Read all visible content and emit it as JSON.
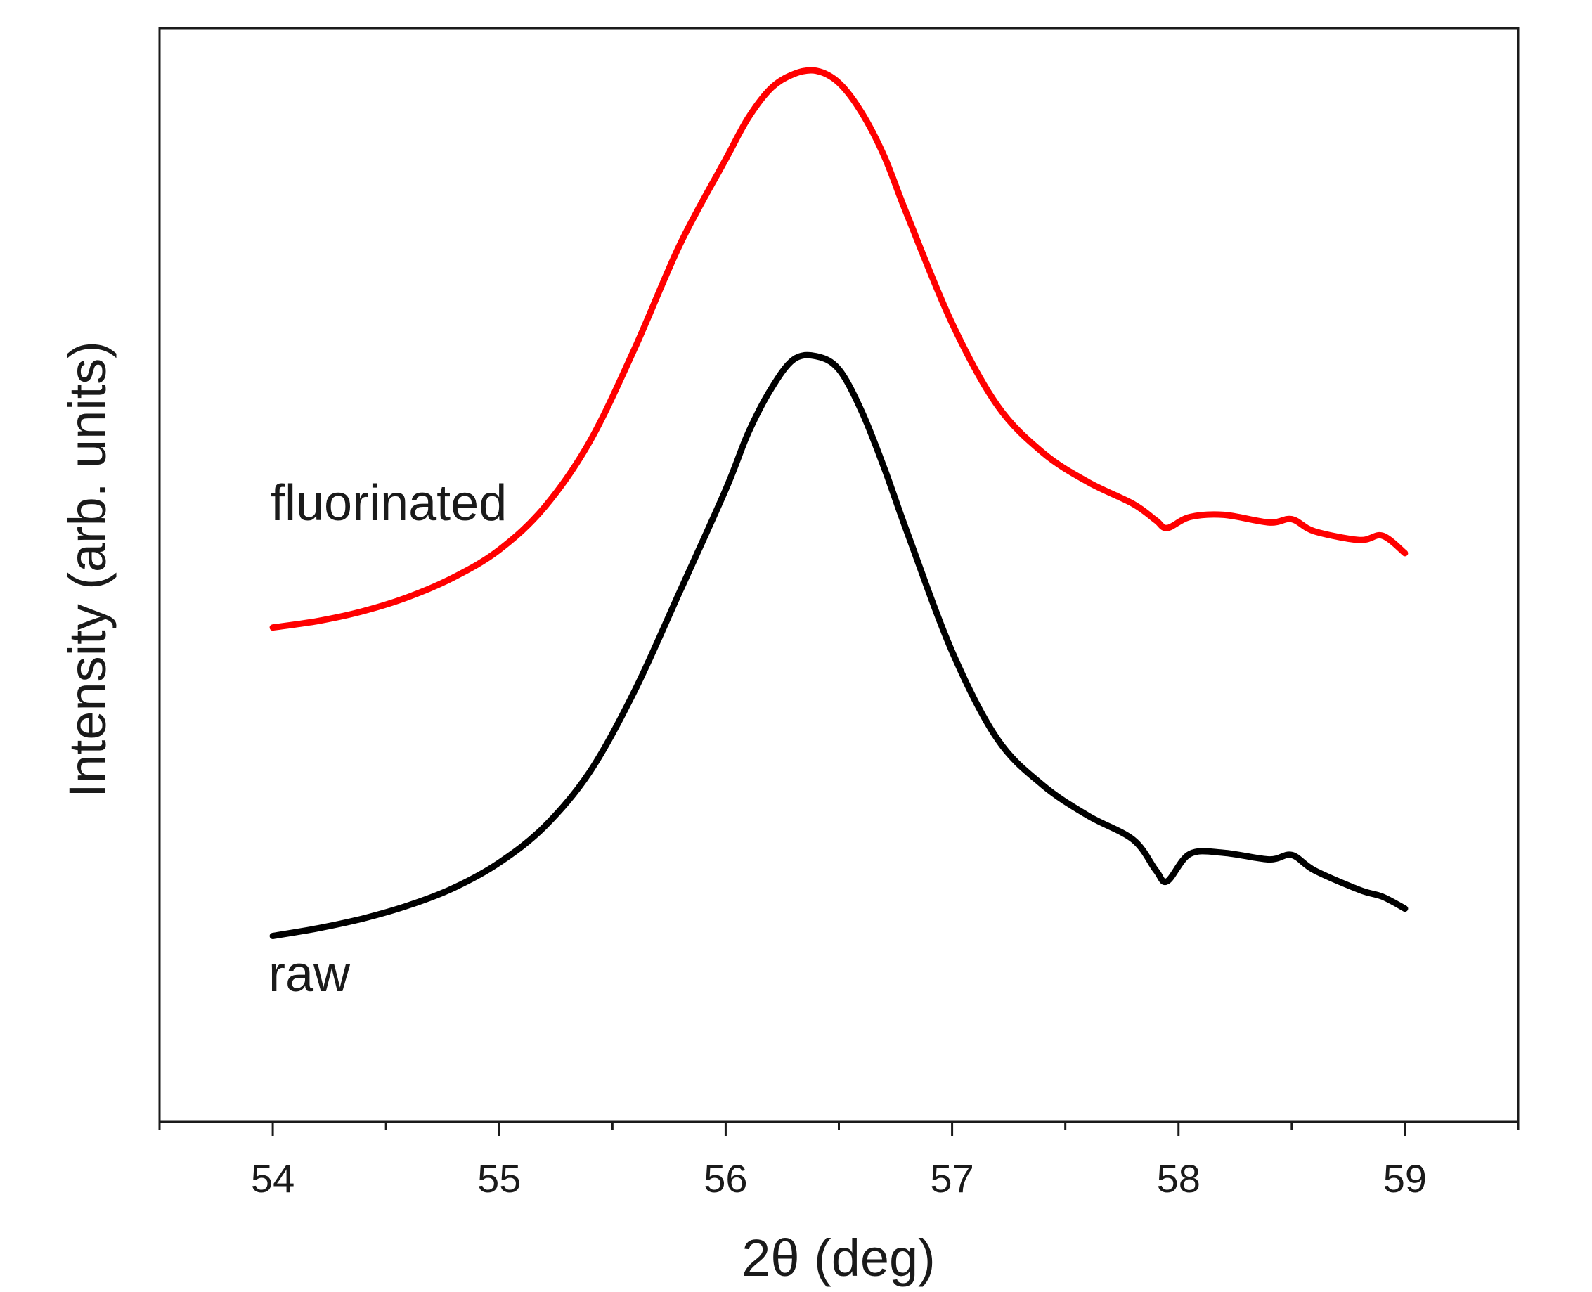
{
  "chart_data": {
    "type": "line",
    "title": "",
    "xlabel": "2θ (deg)",
    "ylabel": "Intensity (arb. units)",
    "xlim": [
      53.5,
      59.5
    ],
    "ylim": [
      0,
      1
    ],
    "x_ticks": [
      "54",
      "55",
      "56",
      "57",
      "58",
      "59"
    ],
    "y_ticks": [],
    "grid": false,
    "legend": "none",
    "series": [
      {
        "name": "fluorinated",
        "color": "#ff0000",
        "x": [
          54.0,
          54.2,
          54.4,
          54.6,
          54.8,
          55.0,
          55.2,
          55.4,
          55.6,
          55.8,
          56.0,
          56.1,
          56.2,
          56.3,
          56.4,
          56.5,
          56.6,
          56.7,
          56.8,
          57.0,
          57.2,
          57.4,
          57.6,
          57.8,
          57.9,
          57.95,
          58.05,
          58.2,
          58.4,
          58.5,
          58.6,
          58.8,
          58.9,
          59.0
        ],
        "values": [
          0.452,
          0.458,
          0.467,
          0.48,
          0.498,
          0.523,
          0.562,
          0.622,
          0.708,
          0.803,
          0.88,
          0.918,
          0.945,
          0.958,
          0.961,
          0.95,
          0.923,
          0.883,
          0.83,
          0.73,
          0.655,
          0.612,
          0.585,
          0.565,
          0.55,
          0.543,
          0.553,
          0.555,
          0.548,
          0.551,
          0.54,
          0.532,
          0.536,
          0.52
        ]
      },
      {
        "name": "raw",
        "color": "#000000",
        "x": [
          54.0,
          54.2,
          54.4,
          54.6,
          54.8,
          55.0,
          55.2,
          55.4,
          55.6,
          55.8,
          56.0,
          56.1,
          56.2,
          56.3,
          56.4,
          56.5,
          56.6,
          56.7,
          56.8,
          57.0,
          57.2,
          57.4,
          57.6,
          57.8,
          57.9,
          57.95,
          58.05,
          58.2,
          58.4,
          58.5,
          58.6,
          58.8,
          58.9,
          59.0
        ],
        "values": [
          0.17,
          0.177,
          0.186,
          0.198,
          0.214,
          0.237,
          0.27,
          0.32,
          0.395,
          0.486,
          0.578,
          0.63,
          0.67,
          0.697,
          0.7,
          0.688,
          0.65,
          0.598,
          0.54,
          0.43,
          0.35,
          0.308,
          0.28,
          0.258,
          0.23,
          0.22,
          0.245,
          0.246,
          0.24,
          0.244,
          0.23,
          0.212,
          0.206,
          0.195
        ]
      }
    ],
    "annotations": [
      {
        "text": "fluorinated",
        "series": "fluorinated"
      },
      {
        "text": "raw",
        "series": "raw"
      }
    ]
  }
}
